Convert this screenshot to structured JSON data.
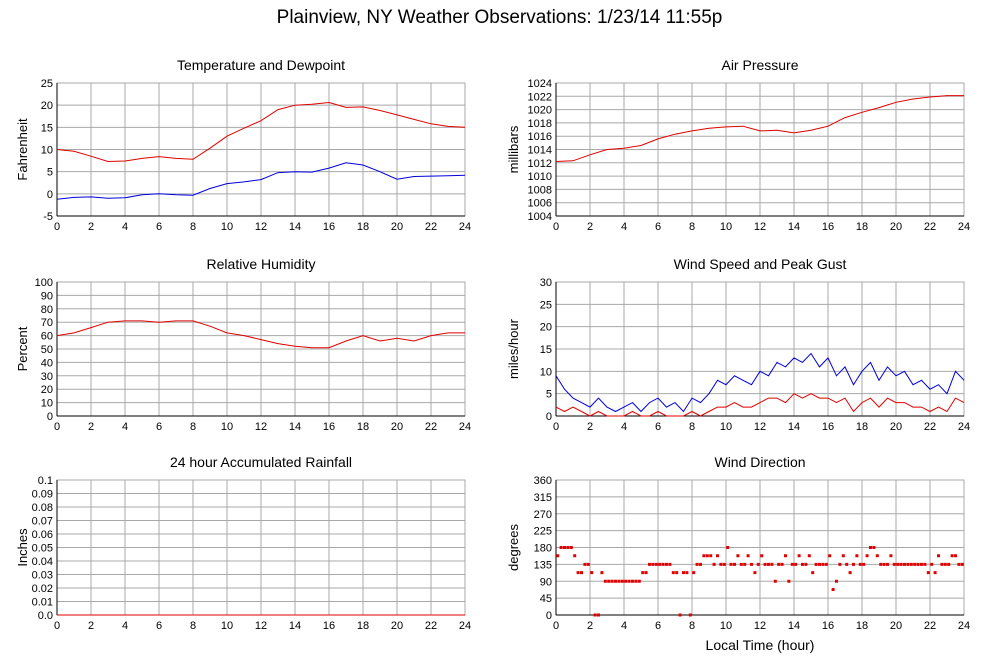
{
  "title": "Plainview, NY Weather Observations: 1/23/14 11:55p",
  "xlabel": "Local Time (hour)",
  "colors": {
    "red": "#e00000",
    "blue": "#0000dd",
    "grid": "#a8a8a8",
    "axis": "#000000"
  },
  "chart_data": [
    {
      "type": "line",
      "title": "Temperature and Dewpoint",
      "ylabel": "Fahrenheit",
      "xlim": [
        0,
        24
      ],
      "ylim": [
        -5,
        25
      ],
      "xticks": [
        0,
        2,
        4,
        6,
        8,
        10,
        12,
        14,
        16,
        18,
        20,
        22,
        24
      ],
      "yticks": [
        -5,
        0,
        5,
        10,
        15,
        20,
        25
      ],
      "grid": true,
      "series": [
        {
          "color": "#e00000",
          "x": [
            0,
            1,
            2,
            3,
            4,
            5,
            6,
            7,
            8,
            9,
            10,
            11,
            12,
            13,
            14,
            15,
            16,
            17,
            18,
            19,
            20,
            21,
            22,
            23,
            24
          ],
          "y": [
            10,
            9.6,
            8.5,
            7.3,
            7.4,
            8.0,
            8.4,
            8.0,
            7.8,
            10.3,
            13.0,
            14.8,
            16.5,
            19.0,
            20.0,
            20.2,
            20.6,
            19.5,
            19.6,
            18.8,
            17.8,
            16.8,
            15.8,
            15.2,
            15.0
          ]
        },
        {
          "color": "#0000dd",
          "x": [
            0,
            1,
            2,
            3,
            4,
            5,
            6,
            7,
            8,
            9,
            10,
            11,
            12,
            13,
            14,
            15,
            16,
            17,
            18,
            19,
            20,
            21,
            22,
            23,
            24
          ],
          "y": [
            -1.2,
            -0.8,
            -0.7,
            -1.0,
            -0.9,
            -0.2,
            0.0,
            -0.2,
            -0.3,
            1.2,
            2.3,
            2.7,
            3.2,
            4.8,
            5.0,
            4.9,
            5.8,
            7.0,
            6.5,
            5.0,
            3.3,
            3.9,
            4.0,
            4.1,
            4.2
          ]
        }
      ]
    },
    {
      "type": "line",
      "title": "Air Pressure",
      "ylabel": "millibars",
      "xlim": [
        0,
        24
      ],
      "ylim": [
        1004,
        1024
      ],
      "xticks": [
        0,
        2,
        4,
        6,
        8,
        10,
        12,
        14,
        16,
        18,
        20,
        22,
        24
      ],
      "yticks": [
        1004,
        1006,
        1008,
        1010,
        1012,
        1014,
        1016,
        1018,
        1020,
        1022,
        1024
      ],
      "grid": true,
      "series": [
        {
          "color": "#e00000",
          "x": [
            0,
            1,
            2,
            3,
            4,
            5,
            6,
            7,
            8,
            9,
            10,
            11,
            12,
            13,
            14,
            15,
            16,
            17,
            18,
            19,
            20,
            21,
            22,
            23,
            24
          ],
          "y": [
            1012.2,
            1012.3,
            1013.2,
            1014.0,
            1014.2,
            1014.6,
            1015.6,
            1016.3,
            1016.8,
            1017.2,
            1017.4,
            1017.5,
            1016.8,
            1016.9,
            1016.5,
            1016.9,
            1017.5,
            1018.8,
            1019.6,
            1020.3,
            1021.1,
            1021.6,
            1021.9,
            1022.1,
            1022.1
          ]
        }
      ]
    },
    {
      "type": "line",
      "title": "Relative Humidity",
      "ylabel": "Percent",
      "xlim": [
        0,
        24
      ],
      "ylim": [
        0,
        100
      ],
      "xticks": [
        0,
        2,
        4,
        6,
        8,
        10,
        12,
        14,
        16,
        18,
        20,
        22,
        24
      ],
      "yticks": [
        0,
        10,
        20,
        30,
        40,
        50,
        60,
        70,
        80,
        90,
        100
      ],
      "grid": true,
      "series": [
        {
          "color": "#e00000",
          "x": [
            0,
            1,
            2,
            3,
            4,
            5,
            6,
            7,
            8,
            9,
            10,
            11,
            12,
            13,
            14,
            15,
            16,
            17,
            18,
            19,
            20,
            21,
            22,
            23,
            24
          ],
          "y": [
            60,
            62,
            66,
            70,
            71,
            71,
            70,
            71,
            71,
            67,
            62,
            60,
            57,
            54,
            52,
            51,
            51,
            56,
            60,
            56,
            58,
            56,
            60,
            62,
            62
          ]
        }
      ]
    },
    {
      "type": "line",
      "title": "Wind Speed and Peak Gust",
      "ylabel": "miles/hour",
      "xlim": [
        0,
        24
      ],
      "ylim": [
        0,
        30
      ],
      "xticks": [
        0,
        2,
        4,
        6,
        8,
        10,
        12,
        14,
        16,
        18,
        20,
        22,
        24
      ],
      "yticks": [
        0,
        5,
        10,
        15,
        20,
        25,
        30
      ],
      "grid": true,
      "series": [
        {
          "color": "#0000dd",
          "x": [
            0,
            0.5,
            1,
            1.5,
            2,
            2.5,
            3,
            3.5,
            4,
            4.5,
            5,
            5.5,
            6,
            6.5,
            7,
            7.5,
            8,
            8.5,
            9,
            9.5,
            10,
            10.5,
            11,
            11.5,
            12,
            12.5,
            13,
            13.5,
            14,
            14.5,
            15,
            15.5,
            16,
            16.5,
            17,
            17.5,
            18,
            18.5,
            19,
            19.5,
            20,
            20.5,
            21,
            21.5,
            22,
            22.5,
            23,
            23.5,
            24
          ],
          "y": [
            9,
            6,
            4,
            3,
            2,
            4,
            2,
            1,
            2,
            3,
            1,
            3,
            4,
            2,
            3,
            1,
            4,
            3,
            5,
            8,
            7,
            9,
            8,
            7,
            10,
            9,
            12,
            11,
            13,
            12,
            14,
            11,
            13,
            9,
            11,
            7,
            10,
            12,
            8,
            11,
            9,
            10,
            7,
            8,
            6,
            7,
            5,
            10,
            8
          ]
        },
        {
          "color": "#e00000",
          "x": [
            0,
            0.5,
            1,
            1.5,
            2,
            2.5,
            3,
            3.5,
            4,
            4.5,
            5,
            5.5,
            6,
            6.5,
            7,
            7.5,
            8,
            8.5,
            9,
            9.5,
            10,
            10.5,
            11,
            11.5,
            12,
            12.5,
            13,
            13.5,
            14,
            14.5,
            15,
            15.5,
            16,
            16.5,
            17,
            17.5,
            18,
            18.5,
            19,
            19.5,
            20,
            20.5,
            21,
            21.5,
            22,
            22.5,
            23,
            23.5,
            24
          ],
          "y": [
            2,
            1,
            2,
            1,
            0,
            1,
            0,
            0,
            0,
            1,
            0,
            0,
            1,
            0,
            0,
            0,
            1,
            0,
            1,
            2,
            2,
            3,
            2,
            2,
            3,
            4,
            4,
            3,
            5,
            4,
            5,
            4,
            4,
            3,
            4,
            1,
            3,
            4,
            2,
            4,
            3,
            3,
            2,
            2,
            1,
            2,
            1,
            4,
            3
          ]
        }
      ]
    },
    {
      "type": "line",
      "title": "24 hour Accumulated Rainfall",
      "ylabel": "Inches",
      "xlim": [
        0,
        24
      ],
      "ylim": [
        0,
        0.1
      ],
      "xticks": [
        0,
        2,
        4,
        6,
        8,
        10,
        12,
        14,
        16,
        18,
        20,
        22,
        24
      ],
      "yticks": [
        0.0,
        0.01,
        0.02,
        0.03,
        0.04,
        0.05,
        0.06,
        0.07,
        0.08,
        0.09,
        0.1
      ],
      "ytick_labels": [
        "0.0",
        "0.01",
        "0.02",
        "0.03",
        "0.04",
        "0.05",
        "0.06",
        "0.07",
        "0.08",
        "0.09",
        "0.1"
      ],
      "grid": true,
      "series": [
        {
          "color": "#e00000",
          "x": [
            0,
            24
          ],
          "y": [
            0,
            0
          ]
        }
      ]
    },
    {
      "type": "scatter",
      "title": "Wind Direction",
      "ylabel": "degrees",
      "xlim": [
        0,
        24
      ],
      "ylim": [
        0,
        360
      ],
      "xticks": [
        0,
        2,
        4,
        6,
        8,
        10,
        12,
        14,
        16,
        18,
        20,
        22,
        24
      ],
      "yticks": [
        0,
        45,
        90,
        135,
        180,
        225,
        270,
        315,
        360
      ],
      "grid": true,
      "series": [
        {
          "color": "#e00000",
          "x": [
            0.1,
            0.3,
            0.5,
            0.7,
            0.9,
            1.1,
            1.3,
            1.5,
            1.7,
            1.9,
            2.1,
            2.3,
            2.5,
            2.7,
            2.9,
            3.1,
            3.3,
            3.5,
            3.7,
            3.9,
            4.1,
            4.3,
            4.5,
            4.7,
            4.9,
            5.1,
            5.3,
            5.5,
            5.7,
            5.9,
            6.1,
            6.3,
            6.5,
            6.7,
            6.9,
            7.1,
            7.3,
            7.5,
            7.7,
            7.9,
            8.1,
            8.3,
            8.5,
            8.7,
            8.9,
            9.1,
            9.3,
            9.5,
            9.7,
            9.9,
            10.1,
            10.3,
            10.5,
            10.7,
            10.9,
            11.1,
            11.3,
            11.5,
            11.7,
            11.9,
            12.1,
            12.3,
            12.5,
            12.7,
            12.9,
            13.1,
            13.3,
            13.5,
            13.7,
            13.9,
            14.1,
            14.3,
            14.5,
            14.7,
            14.9,
            15.1,
            15.3,
            15.5,
            15.7,
            15.9,
            16.1,
            16.3,
            16.5,
            16.7,
            16.9,
            17.1,
            17.3,
            17.5,
            17.7,
            17.9,
            18.1,
            18.3,
            18.5,
            18.7,
            18.9,
            19.1,
            19.3,
            19.5,
            19.7,
            19.9,
            20.1,
            20.3,
            20.5,
            20.7,
            20.9,
            21.1,
            21.3,
            21.5,
            21.7,
            21.9,
            22.1,
            22.3,
            22.5,
            22.7,
            22.9,
            23.1,
            23.3,
            23.5,
            23.7,
            23.9
          ],
          "y": [
            158,
            180,
            180,
            180,
            180,
            158,
            113,
            113,
            135,
            135,
            113,
            0,
            0,
            113,
            90,
            90,
            90,
            90,
            90,
            90,
            90,
            90,
            90,
            90,
            90,
            113,
            113,
            135,
            135,
            135,
            135,
            135,
            135,
            135,
            113,
            113,
            0,
            113,
            113,
            0,
            113,
            135,
            135,
            158,
            158,
            158,
            135,
            158,
            135,
            135,
            180,
            135,
            135,
            158,
            135,
            135,
            158,
            135,
            113,
            135,
            158,
            135,
            135,
            135,
            90,
            135,
            135,
            158,
            90,
            135,
            135,
            158,
            135,
            135,
            158,
            113,
            135,
            135,
            135,
            135,
            158,
            68,
            90,
            135,
            158,
            135,
            113,
            135,
            158,
            135,
            135,
            158,
            180,
            180,
            158,
            135,
            135,
            135,
            158,
            135,
            135,
            135,
            135,
            135,
            135,
            135,
            135,
            135,
            135,
            113,
            135,
            113,
            158,
            135,
            135,
            135,
            158,
            158,
            135,
            135
          ]
        }
      ]
    }
  ]
}
